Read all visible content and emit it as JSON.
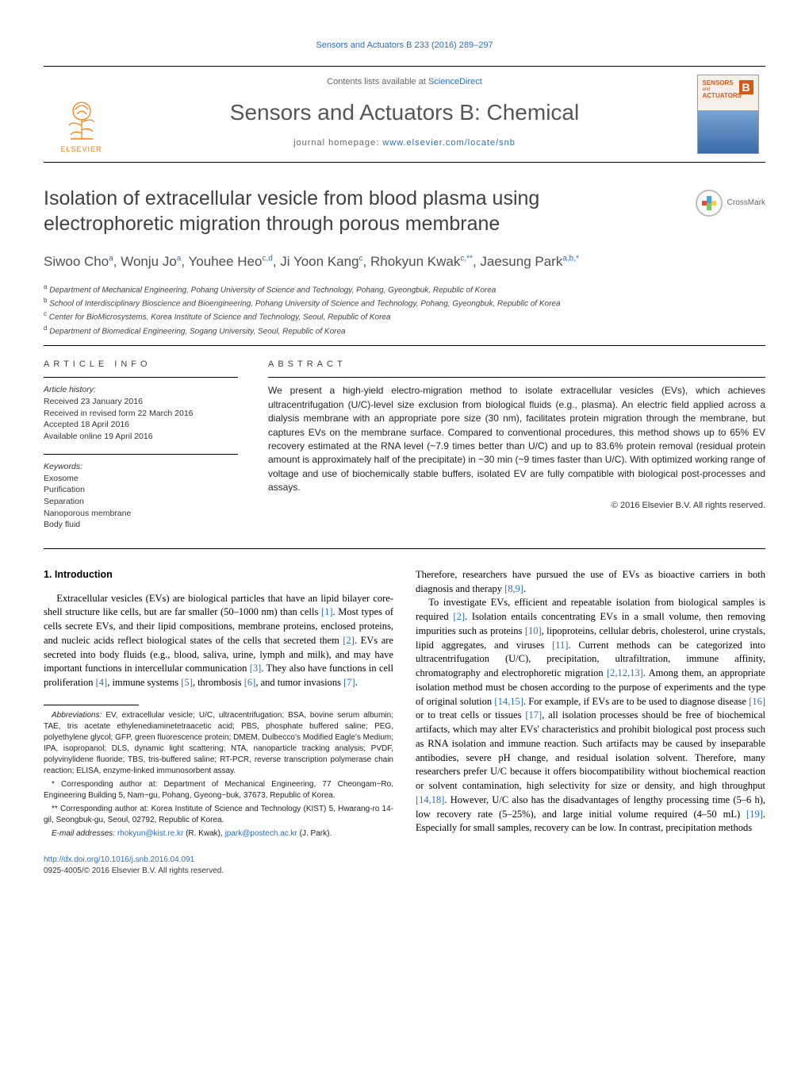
{
  "running_header": "Sensors and Actuators B 233 (2016) 289–297",
  "masthead": {
    "contents_prefix": "Contents lists available at ",
    "contents_link": "ScienceDirect",
    "journal_title": "Sensors and Actuators B: Chemical",
    "homepage_prefix": "journal homepage: ",
    "homepage_link": "www.elsevier.com/locate/snb",
    "elsevier_label": "ELSEVIER",
    "cover_line1": "SENSORS",
    "cover_line2": "ACTUATORS",
    "cover_badge": "B"
  },
  "crossmark_label": "CrossMark",
  "article": {
    "title": "Isolation of extracellular vesicle from blood plasma using electrophoretic migration through porous membrane",
    "authors_html": "Siwoo Cho<sup>a</sup>, Wonju Jo<sup>a</sup>, Youhee Heo<sup>c,d</sup>, Ji Yoon Kang<sup>c</sup>, Rhokyun Kwak<sup>c,**</sup>, Jaesung Park<sup>a,b,*</sup>",
    "affiliations": [
      "a Department of Mechanical Engineering, Pohang University of Science and Technology, Pohang, Gyeongbuk, Republic of Korea",
      "b School of Interdisciplinary Bioscience and Bioengineering, Pohang University of Science and Technology, Pohang, Gyeongbuk, Republic of Korea",
      "c Center for BioMicrosystems, Korea Institute of Science and Technology, Seoul, Republic of Korea",
      "d Department of Biomedical Engineering, Sogang University, Seoul, Republic of Korea"
    ]
  },
  "info": {
    "section_label": "article info",
    "history_label": "Article history:",
    "history": [
      "Received 23 January 2016",
      "Received in revised form 22 March 2016",
      "Accepted 18 April 2016",
      "Available online 19 April 2016"
    ],
    "keywords_label": "Keywords:",
    "keywords": [
      "Exosome",
      "Purification",
      "Separation",
      "Nanoporous membrane",
      "Body fluid"
    ]
  },
  "abstract": {
    "label": "abstract",
    "text": "We present a high-yield electro-migration method to isolate extracellular vesicles (EVs), which achieves ultracentrifugation (U/C)-level size exclusion from biological fluids (e.g., plasma). An electric field applied across a dialysis membrane with an appropriate pore size (30 nm), facilitates protein migration through the membrane, but captures EVs on the membrane surface. Compared to conventional procedures, this method shows up to 65% EV recovery estimated at the RNA level (~7.9 times better than U/C) and up to 83.6% protein removal (residual protein amount is approximately half of the precipitate) in ~30 min (~9 times faster than U/C). With optimized working range of voltage and use of biochemically stable buffers, isolated EV are fully compatible with biological post-processes and assays.",
    "copyright": "© 2016 Elsevier B.V. All rights reserved."
  },
  "body": {
    "heading": "1. Introduction",
    "col1_p1": "Extracellular vesicles (EVs) are biological particles that have an lipid bilayer core-shell structure like cells, but are far smaller (50–1000 nm) than cells [1]. Most types of cells secrete EVs, and their lipid compositions, membrane proteins, enclosed proteins, and nucleic acids reflect biological states of the cells that secreted them [2]. EVs are secreted into body fluids (e.g., blood, saliva, urine, lymph and milk), and may have important functions in intercellular communication [3]. They also have functions in cell proliferation [4], immune systems [5], thrombosis [6], and tumor invasions [7].",
    "col2_p0": "Therefore, researchers have pursued the use of EVs as bioactive carriers in both diagnosis and therapy [8,9].",
    "col2_p1": "To investigate EVs, efficient and repeatable isolation from biological samples is required [2]. Isolation entails concentrating EVs in a small volume, then removing impurities such as proteins [10], lipoproteins, cellular debris, cholesterol, urine crystals, lipid aggregates, and viruses [11]. Current methods can be categorized into ultracentrifugation (U/C), precipitation, ultrafiltration, immune affinity, chromatography and electrophoretic migration [2,12,13]. Among them, an appropriate isolation method must be chosen according to the purpose of experiments and the type of original solution [14,15]. For example, if EVs are to be used to diagnose disease [16] or to treat cells or tissues [17], all isolation processes should be free of biochemical artifacts, which may alter EVs' characteristics and prohibit biological post process such as RNA isolation and immune reaction. Such artifacts may be caused by inseparable antibodies, severe pH change, and residual isolation solvent. Therefore, many researchers prefer U/C because it offers biocompatibility without biochemical reaction or solvent contamination, high selectivity for size or density, and high throughput [14,18]. However, U/C also has the disadvantages of lengthy processing time (5–6 h), low recovery rate (5–25%), and large initial volume required (4–50 mL) [19]. Especially for small samples, recovery can be low. In contrast, precipitation methods"
  },
  "footnotes": {
    "abbrev_label": "Abbreviations:",
    "abbrev_text": " EV, extracellular vesicle; U/C, ultracentrifugation; BSA, bovine serum albumin; TAE, tris acetate ethylenediaminetetraacetic acid; PBS, phosphate buffered saline; PEG, polyethylene glycol; GFP, green fluorescence protein; DMEM, Dulbecco's Modified Eagle's Medium; IPA, isopropanol; DLS, dynamic light scattering; NTA, nanoparticle tracking analysis; PVDF, polyvinylidene fluoride; TBS, tris-buffered saline; RT-PCR, reverse transcription polymerase chain reaction; ELISA, enzyme-linked immunosorbent assay.",
    "corr1": "* Corresponding author at: Department of Mechanical Engineering, 77 Cheongam−Ro, Engineering Building 5, Nam−gu, Pohang, Gyeong−buk, 37673, Republic of Korea.",
    "corr2": "** Corresponding author at: Korea Institute of Science and Technology (KIST) 5, Hwarang-ro 14-gil, Seongbuk-gu, Seoul, 02792, Republic of Korea.",
    "email_label": "E-mail addresses:",
    "email1": "rhokyun@kist.re.kr",
    "email1_who": " (R. Kwak), ",
    "email2": "jpark@postech.ac.kr",
    "email2_who": " (J. Park)."
  },
  "footer": {
    "doi": "http://dx.doi.org/10.1016/j.snb.2016.04.091",
    "issn_line": "0925-4005/© 2016 Elsevier B.V. All rights reserved."
  },
  "refs": {
    "r1": "[1]",
    "r2": "[2]",
    "r3": "[3]",
    "r4": "[4]",
    "r5": "[5]",
    "r6": "[6]",
    "r7": "[7]",
    "r89": "[8,9]",
    "r10": "[10]",
    "r11": "[11]",
    "r21213": "[2,12,13]",
    "r1415": "[14,15]",
    "r16": "[16]",
    "r17": "[17]",
    "r1418": "[14,18]",
    "r19": "[19]"
  },
  "colors": {
    "link": "#2a6ebb",
    "elsevier_orange": "#ff7a00",
    "text_gray": "#505050"
  }
}
